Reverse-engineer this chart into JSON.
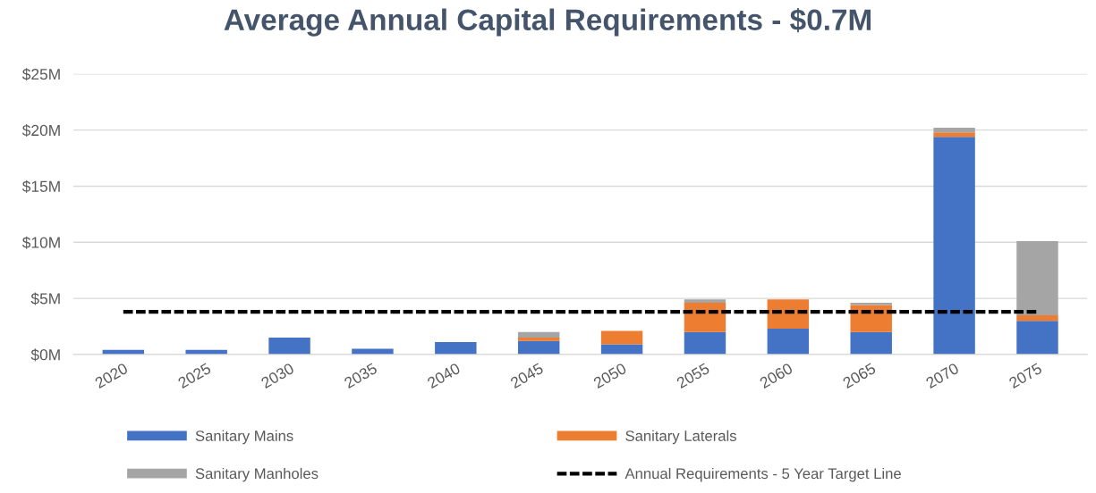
{
  "chart_data": {
    "type": "bar",
    "title": "Average Annual Capital Requirements - $0.7M",
    "categories": [
      "2020",
      "2025",
      "2030",
      "2035",
      "2040",
      "2045",
      "2050",
      "2055",
      "2060",
      "2065",
      "2070",
      "2075"
    ],
    "stacked": true,
    "series": [
      {
        "name": "Sanitary Mains",
        "color": "#4472c4",
        "values": [
          0.4,
          0.4,
          1.5,
          0.5,
          1.1,
          1.2,
          0.9,
          2.0,
          2.3,
          2.0,
          19.4,
          3.0
        ]
      },
      {
        "name": "Sanitary Laterals",
        "color": "#ed7d31",
        "values": [
          null,
          null,
          null,
          null,
          null,
          0.3,
          1.2,
          2.6,
          2.6,
          2.4,
          0.4,
          0.5
        ]
      },
      {
        "name": "Sanitary Manholes",
        "color": "#a5a5a5",
        "values": [
          null,
          null,
          null,
          null,
          null,
          0.5,
          null,
          0.3,
          null,
          0.2,
          0.4,
          6.6
        ]
      },
      {
        "name": "Annual Requirements - 5 Year Target Line",
        "type": "line",
        "line_style": "dashed",
        "color": "#000000",
        "values": [
          3.8,
          3.8,
          3.8,
          3.8,
          3.8,
          3.8,
          3.8,
          3.8,
          3.8,
          3.8,
          3.8,
          3.8
        ]
      }
    ],
    "ylim": [
      0,
      25
    ],
    "yticks": [
      {
        "value": 0,
        "label": "$0M"
      },
      {
        "value": 5,
        "label": "$5M"
      },
      {
        "value": 10,
        "label": "$10M"
      },
      {
        "value": 15,
        "label": "$15M"
      },
      {
        "value": 20,
        "label": "$20M"
      },
      {
        "value": 25,
        "label": "$25M"
      }
    ],
    "grid": "y",
    "legend": "bottom"
  }
}
